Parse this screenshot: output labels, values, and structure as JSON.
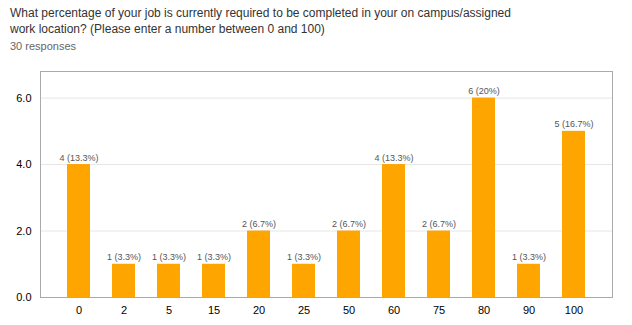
{
  "chart_data": {
    "type": "bar",
    "title": "What percentage of your job is currently required to be completed in your on campus/assigned\nwork location? (Please enter a number between 0 and 100)",
    "subtitle": "30 responses",
    "categories": [
      "0",
      "2",
      "5",
      "15",
      "20",
      "25",
      "50",
      "60",
      "75",
      "80",
      "90",
      "100"
    ],
    "values": [
      4,
      1,
      1,
      1,
      2,
      1,
      2,
      4,
      2,
      6,
      1,
      5
    ],
    "value_labels": [
      "4 (13.3%)",
      "1 (3.3%)",
      "1 (3.3%)",
      "1 (3.3%)",
      "2 (6.7%)",
      "1 (3.3%)",
      "2 (6.7%)",
      "4 (13.3%)",
      "2 (6.7%)",
      "6 (20%)",
      "1 (3.3%)",
      "5 (16.7%)"
    ],
    "data_labels": true,
    "color": "#FFA500",
    "ylim": [
      0,
      6.8
    ],
    "yticks": [
      0,
      2,
      4,
      6
    ],
    "grid": true
  }
}
